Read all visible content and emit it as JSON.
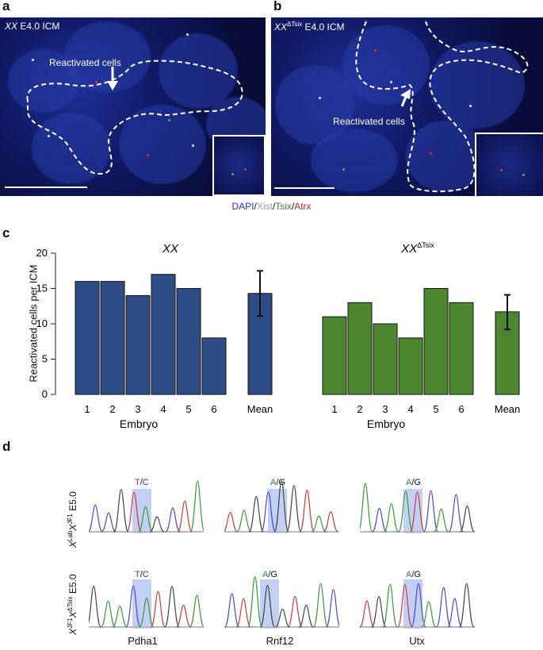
{
  "panels": {
    "a": {
      "letter": "a",
      "genotype": "XX",
      "stage": " E4.0 ICM",
      "annotation": "Reactivated cells"
    },
    "b": {
      "letter": "b",
      "genotype": "XX",
      "genotype_sup": "ΔTsix",
      "stage": " E4.0 ICM",
      "annotation": "Reactivated cells"
    },
    "legend": {
      "dapi": "DAPI",
      "sep1": "/",
      "xist": "Xist",
      "sep2": "/",
      "tsix": "Tsix",
      "sep3": "/",
      "atrx": "Atrx",
      "colors": {
        "dapi": "#2b2bd6",
        "xist": "#9a9a9a",
        "tsix": "#2a8a2a",
        "atrx": "#d62020"
      }
    },
    "c": {
      "letter": "c"
    },
    "d": {
      "letter": "d",
      "row1_label_base1": "X",
      "row1_label_sup1": "Lab",
      "row1_label_base2": "X",
      "row1_label_sup2": "JF1",
      "row1_stage": " E5.0",
      "row2_label_base1": "X",
      "row2_label_sup1": "JF1",
      "row2_label_base2": "X",
      "row2_label_sup2": "ΔTsix",
      "row2_stage": " E5.0",
      "genes": [
        "Pdha1",
        "Rnf12",
        "Utx"
      ],
      "snps": [
        {
          "a": "T",
          "b": "C",
          "sep": "/"
        },
        {
          "a": "A",
          "b": "G",
          "sep": "/"
        },
        {
          "a": "A",
          "b": "G",
          "sep": "/"
        }
      ],
      "snp_colors": {
        "T": "#d62020",
        "C": "#2b2bd6",
        "A": "#2a8a2a",
        "G": "#111111"
      }
    }
  },
  "chart_data": [
    {
      "type": "bar",
      "title": "XX",
      "ylabel": "Reactivated cells per ICM",
      "xlabel": "Embryo",
      "categories": [
        "1",
        "2",
        "3",
        "4",
        "5",
        "6",
        "Mean"
      ],
      "values": [
        16,
        16,
        14,
        17,
        15,
        8,
        14.3
      ],
      "mean_error": [
        11.1,
        17.5
      ],
      "ylim": [
        0,
        20
      ],
      "yticks": [
        0,
        5,
        10,
        15,
        20
      ],
      "color": "#2e4d87"
    },
    {
      "type": "bar",
      "title": "XX",
      "title_sup": "ΔTsix",
      "ylabel": "",
      "xlabel": "Embryo",
      "categories": [
        "1",
        "2",
        "3",
        "4",
        "5",
        "6",
        "Mean"
      ],
      "values": [
        11,
        13,
        10,
        8,
        15,
        13,
        11.7
      ],
      "mean_error": [
        9.2,
        14.1
      ],
      "ylim": [
        0,
        20
      ],
      "yticks": [
        0,
        5,
        10,
        15,
        20
      ],
      "color": "#4c862f"
    }
  ]
}
